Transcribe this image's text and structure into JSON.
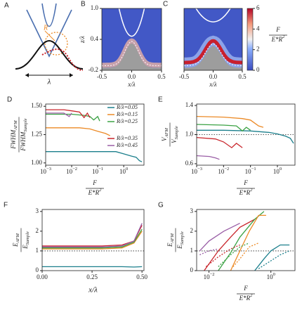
{
  "chart_data": [
    {
      "type": "diagram",
      "label": "A",
      "annotations": {
        "radius": "R",
        "wavelength": "λ"
      }
    },
    {
      "type": "heatmap",
      "label": "B",
      "xlabel": "x/λ",
      "ylabel": "z/λ",
      "xlim": [
        -0.5,
        0.5
      ],
      "xticks": [
        -0.5,
        {
          "value": 0,
          "label": "0.0"
        },
        0.5
      ],
      "ylim": [
        -0.2,
        1.0
      ],
      "yticks": [
        -0.2,
        0.4,
        {
          "value": 1,
          "label": "1.0"
        }
      ]
    },
    {
      "type": "heatmap",
      "label": "C",
      "xlabel": "x/λ",
      "xlim": [
        -0.5,
        0.5
      ],
      "xticks": [
        -0.5,
        {
          "value": 0,
          "label": "0.0"
        },
        0.5
      ],
      "ylim": [
        -0.2,
        1.0
      ],
      "colorbar": {
        "lim": [
          0,
          6
        ],
        "ticks": [
          0,
          2,
          4,
          6
        ],
        "label": {
          "num": "F",
          "den": "E*R",
          "den_sup": "2"
        }
      }
    },
    {
      "type": "line",
      "label": "D",
      "xlog": true,
      "xlabel": {
        "num": "F",
        "den": "E*R",
        "den_sup": "2"
      },
      "ylabel": {
        "num": "FWHM",
        "num_sub": "AFM",
        "den": "FWHM",
        "den_sub": "Sample"
      },
      "xlim": [
        0.001,
        6
      ],
      "xticks": [
        {
          "value": 0.001,
          "label": "10",
          "sup": "−3"
        },
        {
          "value": 0.01,
          "label": "10",
          "sup": "−2"
        },
        {
          "value": 0.1,
          "label": "10",
          "sup": "−1"
        },
        {
          "value": 1,
          "label": "10",
          "sup": "0"
        }
      ],
      "ylim": [
        0.98,
        1.52
      ],
      "yticks": [
        {
          "value": 1,
          "label": "1.00"
        },
        1.25,
        {
          "value": 1.5,
          "label": "1.50"
        }
      ],
      "legend": "upper right",
      "series": [
        {
          "name": "R/λ=0.05",
          "color": "#1b7f8c",
          "x": [
            0.001,
            0.01,
            0.1,
            0.5,
            1,
            2,
            3,
            4,
            5
          ],
          "values": [
            1.1,
            1.1,
            1.1,
            1.1,
            1.08,
            1.06,
            1.05,
            1.02,
            1.01
          ]
        },
        {
          "name": "R/λ=0.15",
          "color": "#ec8a26",
          "x": [
            0.001,
            0.01,
            0.02,
            0.05,
            0.1,
            0.2,
            0.3
          ],
          "values": [
            1.31,
            1.31,
            1.31,
            1.3,
            1.28,
            1.26,
            1.24
          ]
        },
        {
          "name": "R/λ=0.25",
          "color": "#3ba244",
          "x": [
            0.001,
            0.01,
            0.03,
            0.05,
            0.07,
            0.1,
            0.12
          ],
          "values": [
            1.43,
            1.43,
            1.42,
            1.41,
            1.38,
            1.41,
            1.37
          ]
        },
        {
          "name": "R/λ=0.35",
          "color": "#c9262c",
          "x": [
            0.001,
            0.005,
            0.01,
            0.02,
            0.03,
            0.04,
            0.05
          ],
          "values": [
            1.47,
            1.47,
            1.46,
            1.45,
            1.4,
            1.44,
            1.4
          ]
        },
        {
          "name": "R/λ=0.45",
          "color": "#9a5ea6",
          "x": [
            0.001,
            0.003,
            0.005,
            0.008,
            0.01
          ],
          "values": [
            1.44,
            1.44,
            1.44,
            1.41,
            1.44
          ]
        }
      ]
    },
    {
      "type": "line",
      "label": "E",
      "xlog": true,
      "xlabel": {
        "num": "F",
        "den": "E*R",
        "den_sup": "2"
      },
      "ylabel": {
        "num": "V",
        "num_sub": "AFM",
        "den": "V",
        "den_sub": "Sample"
      },
      "xlim": [
        0.001,
        4.5
      ],
      "xticks": [
        {
          "value": 0.001,
          "label": "10",
          "sup": "−3"
        },
        {
          "value": 0.01,
          "label": "10",
          "sup": "−2"
        },
        {
          "value": 0.1,
          "label": "10",
          "sup": "−1"
        },
        {
          "value": 1,
          "label": "10",
          "sup": "0"
        }
      ],
      "ylim": [
        0.58,
        1.42
      ],
      "yticks": [
        0.6,
        {
          "value": 1,
          "label": "1.0"
        },
        1.4
      ],
      "reference_line": 1,
      "series": [
        {
          "color": "#1b7f8c",
          "x": [
            0.001,
            0.01,
            0.1,
            0.5,
            1,
            2,
            3,
            4
          ],
          "values": [
            1.06,
            1.06,
            1.05,
            1.03,
            1.01,
            0.98,
            0.95,
            0.88
          ]
        },
        {
          "color": "#ec8a26",
          "x": [
            0.001,
            0.01,
            0.05,
            0.1,
            0.2,
            0.3
          ],
          "values": [
            1.25,
            1.24,
            1.22,
            1.2,
            1.12,
            1.1
          ]
        },
        {
          "color": "#3ba244",
          "x": [
            0.001,
            0.01,
            0.03,
            0.05,
            0.07,
            0.1
          ],
          "values": [
            1.14,
            1.13,
            1.12,
            1.05,
            1.1,
            1.06
          ]
        },
        {
          "color": "#c9262c",
          "x": [
            0.001,
            0.005,
            0.01,
            0.02,
            0.03,
            0.05
          ],
          "values": [
            0.96,
            0.94,
            0.9,
            0.82,
            0.88,
            0.82
          ]
        },
        {
          "color": "#9a5ea6",
          "x": [
            0.001,
            0.003,
            0.005,
            0.007
          ],
          "values": [
            0.71,
            0.7,
            0.68,
            0.66
          ]
        }
      ]
    },
    {
      "type": "line",
      "label": "F",
      "xlabel": "x/λ",
      "ylabel": {
        "num": "E",
        "num_sub": "AFM",
        "den": "E",
        "den_sub": "Sample"
      },
      "xlim": [
        0,
        0.51
      ],
      "xticks": [
        {
          "value": 0,
          "label": "0.00"
        },
        0.25,
        {
          "value": 0.5,
          "label": "0.50"
        }
      ],
      "ylim": [
        0,
        3.1
      ],
      "yticks": [
        0,
        1,
        2,
        3
      ],
      "reference_line": 1,
      "series": [
        {
          "color": "#1b7f8c",
          "x": [
            0,
            0.1,
            0.2,
            0.3,
            0.4,
            0.46,
            0.5
          ],
          "values": [
            0.2,
            0.2,
            0.2,
            0.2,
            0.2,
            0.18,
            0.2
          ]
        },
        {
          "color": "#ec8a26",
          "x": [
            0,
            0.1,
            0.2,
            0.3,
            0.4,
            0.46,
            0.5
          ],
          "values": [
            1.1,
            1.1,
            1.1,
            1.1,
            1.15,
            1.4,
            2.0
          ]
        },
        {
          "color": "#3ba244",
          "x": [
            0,
            0.1,
            0.2,
            0.3,
            0.4,
            0.46,
            0.5
          ],
          "values": [
            1.15,
            1.15,
            1.15,
            1.15,
            1.2,
            1.45,
            2.1
          ]
        },
        {
          "color": "#c9262c",
          "x": [
            0,
            0.1,
            0.2,
            0.3,
            0.4,
            0.46,
            0.5
          ],
          "values": [
            1.25,
            1.25,
            1.25,
            1.25,
            1.3,
            1.5,
            2.3
          ]
        },
        {
          "color": "#9a5ea6",
          "x": [
            0,
            0.1,
            0.2,
            0.3,
            0.4,
            0.46,
            0.5
          ],
          "values": [
            1.2,
            1.2,
            1.2,
            1.2,
            1.25,
            1.5,
            2.4
          ]
        }
      ]
    },
    {
      "type": "line",
      "label": "G",
      "xlog": true,
      "xlabel": {
        "num": "F",
        "den": "E*R",
        "den_sup": "2"
      },
      "ylabel": {
        "num": "E",
        "num_sub": "AFM",
        "den": "E",
        "den_sub": "Sample"
      },
      "xlim": [
        0.004,
        6
      ],
      "xticks": [
        {
          "value": 0.01,
          "label": "10",
          "sup": "−2"
        },
        {
          "value": 1,
          "label": "10",
          "sup": "0"
        }
      ],
      "ylim": [
        0,
        3.1
      ],
      "yticks": [
        0,
        1,
        2,
        3
      ],
      "reference_line": 1,
      "series": [
        {
          "color": "#9a5ea6",
          "x": [
            0.005,
            0.01,
            0.03,
            0.1
          ],
          "values": [
            1.0,
            1.5,
            2.0,
            2.4
          ]
        },
        {
          "color": "#c9262c",
          "x": [
            0.007,
            0.02,
            0.05,
            0.1,
            0.3
          ],
          "values": [
            0,
            1.0,
            1.7,
            2.2,
            2.6
          ]
        },
        {
          "color": "#3ba244",
          "x": [
            0.02,
            0.05,
            0.1,
            0.3,
            0.6
          ],
          "values": [
            0,
            0.9,
            1.7,
            2.6,
            3.0
          ]
        },
        {
          "color": "#ec8a26",
          "x": [
            0.05,
            0.1,
            0.2,
            0.4,
            0.7
          ],
          "values": [
            0,
            1.0,
            2.0,
            2.8,
            2.8
          ]
        },
        {
          "color": "#1b7f8c",
          "x": [
            0.3,
            0.6,
            1,
            2,
            4
          ],
          "values": [
            0,
            0.6,
            1.0,
            1.3,
            1.3
          ]
        },
        {
          "color": "#9a5ea6",
          "dash": true,
          "x": [
            0.005,
            0.01,
            0.02
          ],
          "values": [
            0.8,
            1.0,
            1.1
          ]
        },
        {
          "color": "#c9262c",
          "dash": true,
          "x": [
            0.008,
            0.02,
            0.05,
            0.1
          ],
          "values": [
            0.2,
            0.7,
            1.1,
            1.3
          ]
        },
        {
          "color": "#3ba244",
          "dash": true,
          "x": [
            0.02,
            0.05,
            0.1,
            0.2
          ],
          "values": [
            0.2,
            0.8,
            1.2,
            1.4
          ]
        },
        {
          "color": "#ec8a26",
          "dash": true,
          "x": [
            0.06,
            0.1,
            0.2,
            0.4
          ],
          "values": [
            0.2,
            0.6,
            1.2,
            1.4
          ]
        },
        {
          "color": "#1b7f8c",
          "dash": true,
          "x": [
            0.4,
            1,
            2,
            4
          ],
          "values": [
            0.1,
            0.5,
            0.8,
            1.0
          ]
        }
      ]
    }
  ]
}
